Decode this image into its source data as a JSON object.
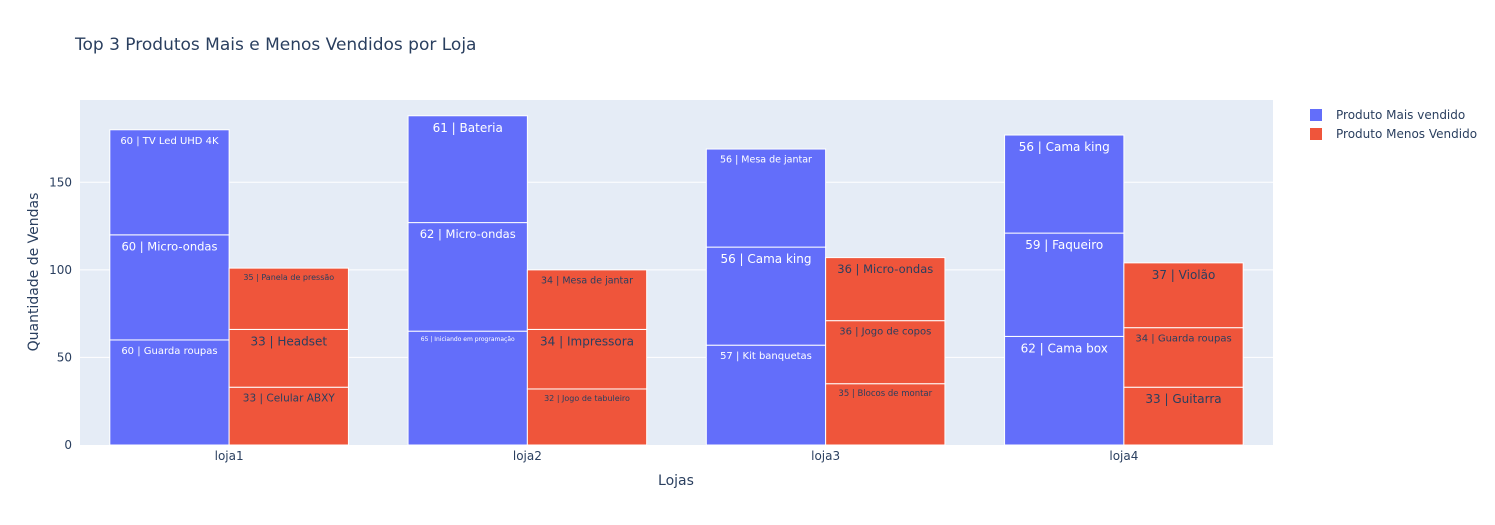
{
  "chart_data": {
    "type": "bar",
    "barmode": "stack-grouped",
    "title": "Top 3 Produtos Mais e Menos Vendidos por Loja",
    "xlabel": "Lojas",
    "ylabel": "Quantidade de Vendas",
    "categories": [
      "loja1",
      "loja2",
      "loja3",
      "loja4"
    ],
    "ylim": [
      0,
      197
    ],
    "yticks": [
      0,
      50,
      100,
      150
    ],
    "grid": true,
    "legend_position": "top-right",
    "series": [
      {
        "name": "Produto Mais vendido",
        "color": "#636efa",
        "label_color": "#ffffff",
        "stacks": [
          [
            {
              "value": 60,
              "label": "60 | Guarda roupas"
            },
            {
              "value": 60,
              "label": "60 | Micro-ondas"
            },
            {
              "value": 60,
              "label": "60 | TV Led UHD 4K"
            }
          ],
          [
            {
              "value": 65,
              "label": "65 | Iniciando em programação"
            },
            {
              "value": 62,
              "label": "62 | Micro-ondas"
            },
            {
              "value": 61,
              "label": "61 | Bateria"
            }
          ],
          [
            {
              "value": 57,
              "label": "57 | Kit banquetas"
            },
            {
              "value": 56,
              "label": "56 | Cama king"
            },
            {
              "value": 56,
              "label": "56 | Mesa de jantar"
            }
          ],
          [
            {
              "value": 62,
              "label": "62 | Cama box"
            },
            {
              "value": 59,
              "label": "59 | Faqueiro"
            },
            {
              "value": 56,
              "label": "56 | Cama king"
            }
          ]
        ]
      },
      {
        "name": "Produto Menos Vendido",
        "color": "#ef553b",
        "label_color": "#2a3f5f",
        "stacks": [
          [
            {
              "value": 33,
              "label": "33 | Celular ABXY"
            },
            {
              "value": 33,
              "label": "33 | Headset"
            },
            {
              "value": 35,
              "label": "35 | Panela de pressão"
            }
          ],
          [
            {
              "value": 32,
              "label": "32 | Jogo de tabuleiro"
            },
            {
              "value": 34,
              "label": "34 | Impressora"
            },
            {
              "value": 34,
              "label": "34 | Mesa de jantar"
            }
          ],
          [
            {
              "value": 35,
              "label": "35 | Blocos de montar"
            },
            {
              "value": 36,
              "label": "36 | Jogo de copos"
            },
            {
              "value": 36,
              "label": "36 | Micro-ondas"
            }
          ],
          [
            {
              "value": 33,
              "label": "33 | Guitarra"
            },
            {
              "value": 34,
              "label": "34 | Guarda roupas"
            },
            {
              "value": 37,
              "label": "37 | Violão"
            }
          ]
        ]
      }
    ]
  }
}
